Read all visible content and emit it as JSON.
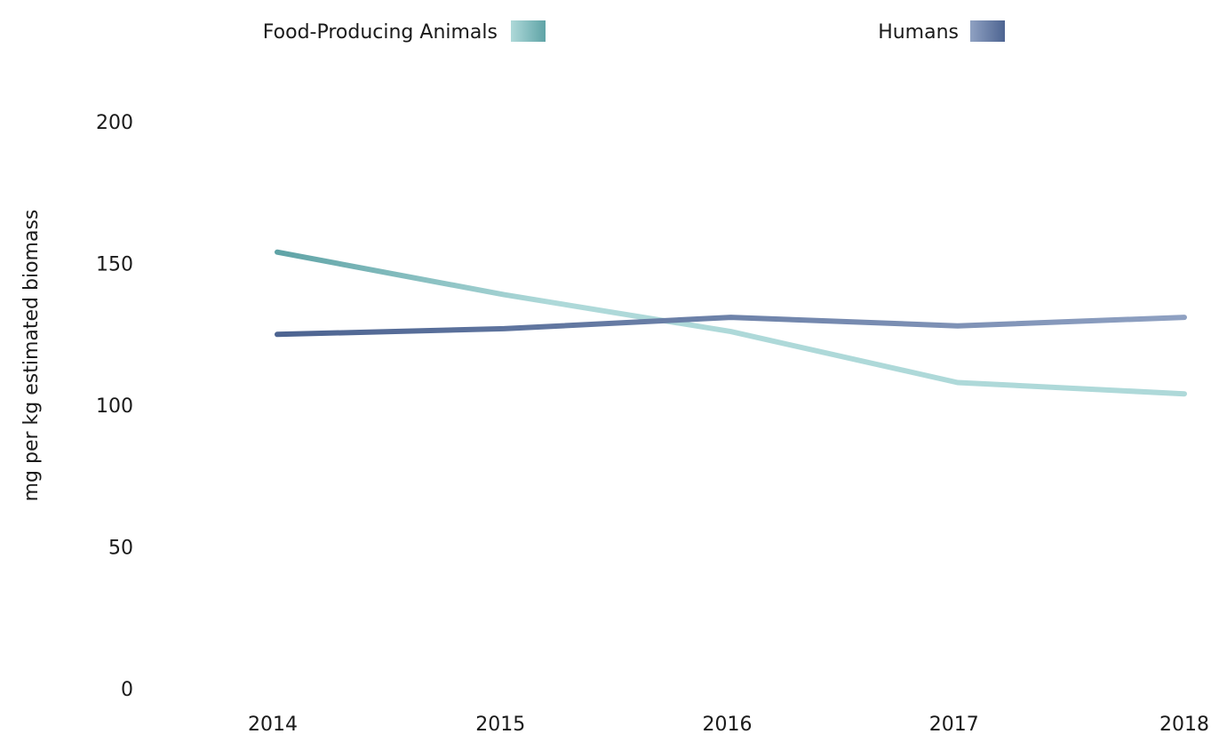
{
  "chart_data": {
    "type": "line",
    "xlabel": "",
    "ylabel": "mg per kg estimated biomass",
    "categories": [
      "2014",
      "2015",
      "2016",
      "2017",
      "2018"
    ],
    "ylim": [
      0,
      200
    ],
    "yticks": [
      "0",
      "50",
      "100",
      "150",
      "200"
    ],
    "grid": false,
    "legend_position": "top",
    "series": [
      {
        "name": "Food-Producing Animals",
        "values": [
          154,
          139,
          126,
          108,
          104
        ],
        "color_start": "#5fa3a6",
        "color_end": "#aed9d9"
      },
      {
        "name": "Humans",
        "values": [
          125,
          127,
          131,
          128,
          131
        ],
        "color_start": "#4d6491",
        "color_end": "#8fa1c2"
      }
    ]
  }
}
